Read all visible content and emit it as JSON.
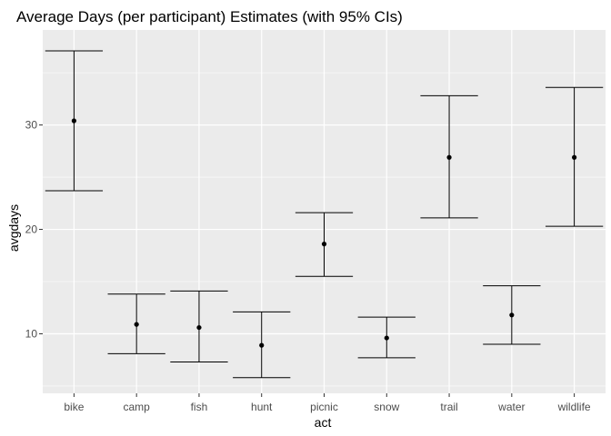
{
  "chart_data": {
    "type": "scatter",
    "title": "Average Days (per participant) Estimates (with 95% CIs)",
    "xlabel": "act",
    "ylabel": "avgdays",
    "categories": [
      "bike",
      "camp",
      "fish",
      "hunt",
      "picnic",
      "snow",
      "trail",
      "water",
      "wildlife"
    ],
    "estimates": [
      30.4,
      10.9,
      10.6,
      8.9,
      18.6,
      9.6,
      26.9,
      11.8,
      26.9
    ],
    "lower": [
      23.7,
      8.1,
      7.3,
      5.8,
      15.5,
      7.7,
      21.1,
      9.0,
      20.3
    ],
    "upper": [
      37.1,
      13.8,
      14.1,
      12.1,
      21.6,
      11.6,
      32.8,
      14.6,
      33.6
    ],
    "ylim": [
      4.3,
      39.1
    ],
    "yticks": [
      10,
      20,
      30
    ],
    "grid": true,
    "colors": {
      "panel": "#ebebeb",
      "grid": "#ffffff",
      "mark": "#000000"
    }
  }
}
